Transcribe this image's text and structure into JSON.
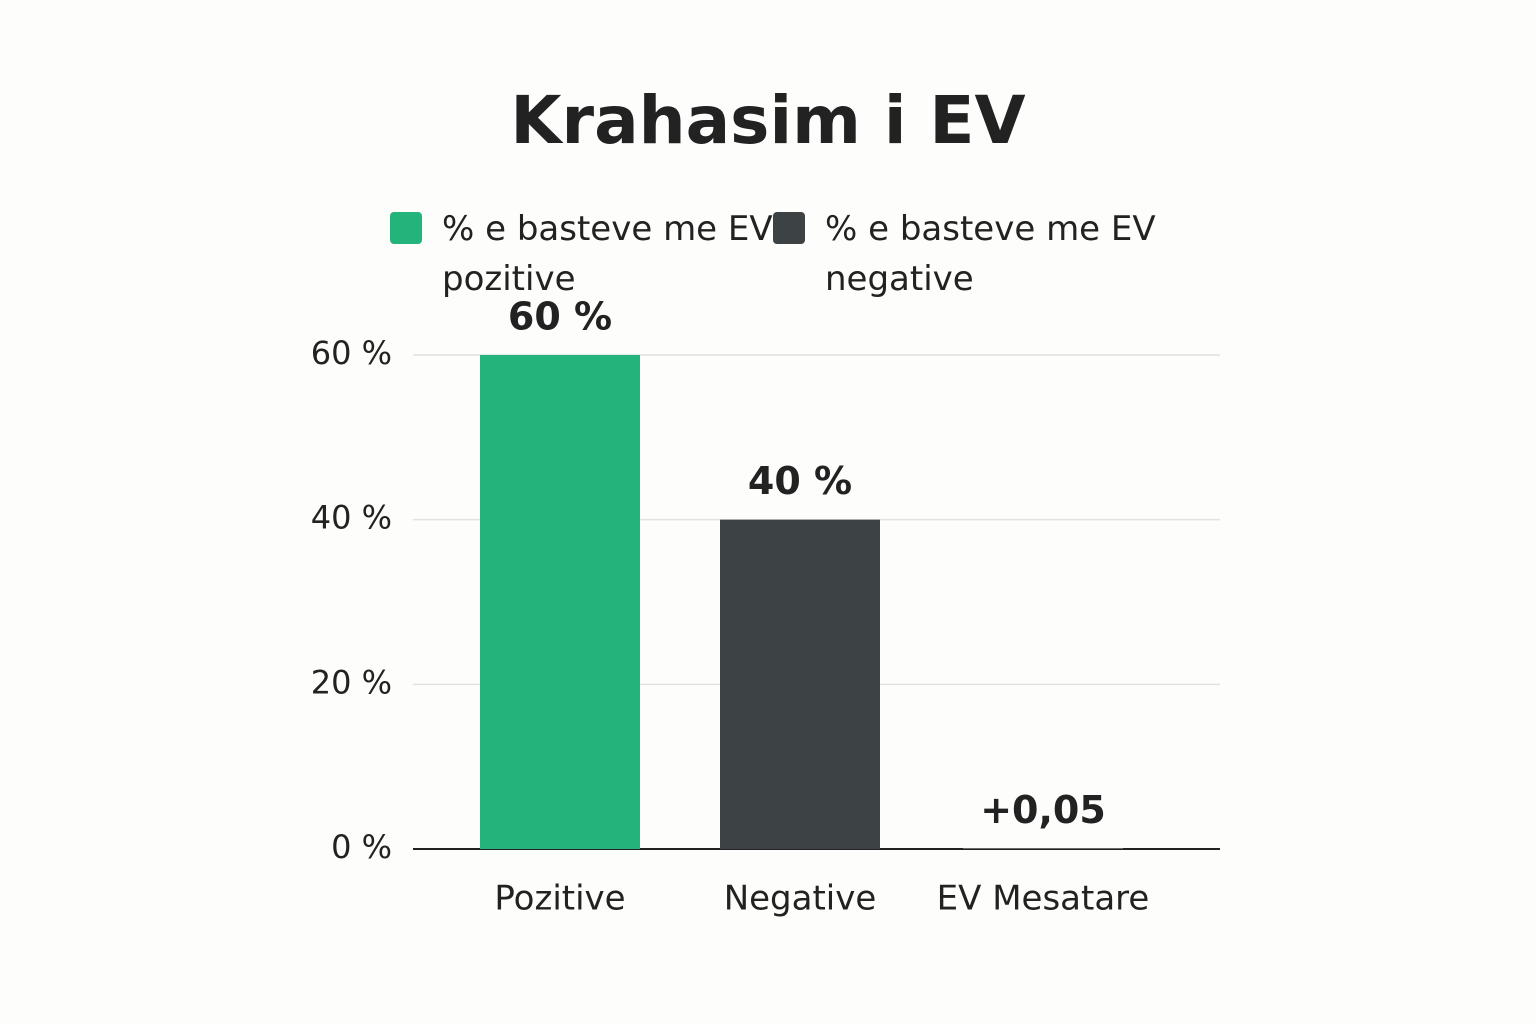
{
  "chart_data": {
    "type": "bar",
    "title": "Krahasim i EV",
    "categories": [
      "Pozitive",
      "Negative",
      "EV Mesatare"
    ],
    "values": [
      60,
      40,
      0.05
    ],
    "value_labels": [
      "60 %",
      "40 %",
      "+0,05"
    ],
    "colors": [
      "#22b47a",
      "#3d4245",
      "#d3d3d3"
    ],
    "legend": [
      {
        "label": "% e basteve me EV pozitive",
        "color": "#22b47a"
      },
      {
        "label": "% e basteve me EV negative",
        "color": "#3d4245"
      }
    ],
    "ylim": [
      0,
      60
    ],
    "yticks": [
      {
        "value": 0,
        "label": "0 %"
      },
      {
        "value": 20,
        "label": "20 %"
      },
      {
        "value": 40,
        "label": "40 %"
      },
      {
        "value": 60,
        "label": "60 %"
      }
    ],
    "grid": true
  }
}
